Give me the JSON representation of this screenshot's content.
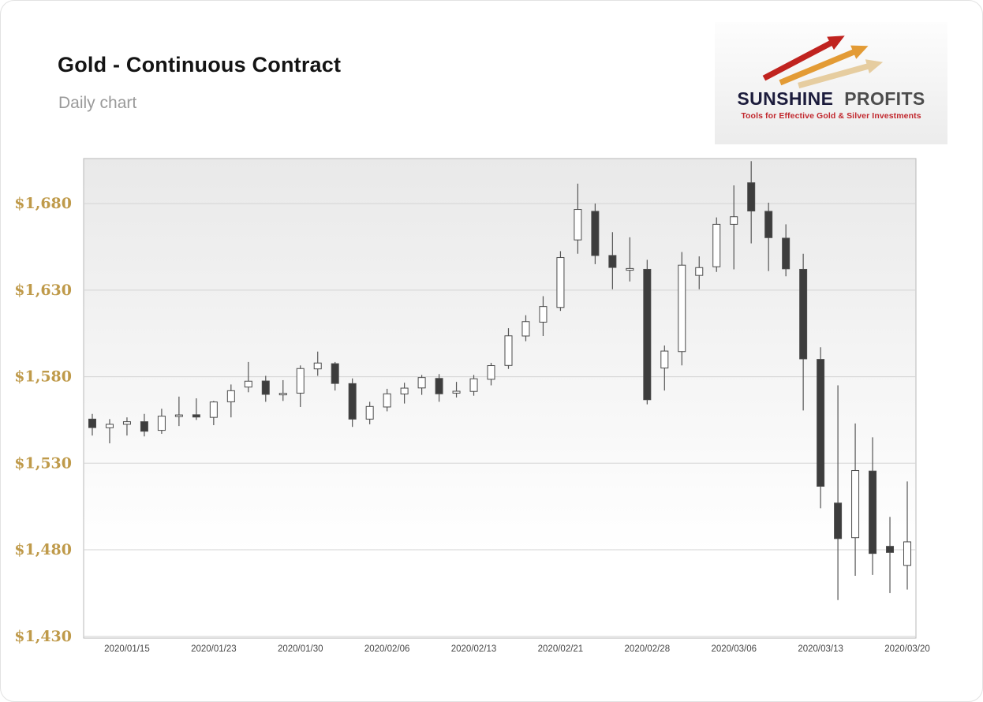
{
  "header": {
    "title": "Gold - Continuous Contract",
    "subtitle": "Daily chart"
  },
  "logo": {
    "brand_primary": "SUNSHINE",
    "brand_secondary": "PROFITS",
    "tagline": "Tools for Effective Gold & Silver Investments",
    "arrow_colors": [
      "#c0231f",
      "#e39b35",
      "#e6cda0"
    ],
    "colors": {
      "primary": "#1c1c3c",
      "secondary": "#4d4d4d",
      "tagline": "#c1272d"
    }
  },
  "chart_data": {
    "type": "candlestick",
    "title": "Gold - Continuous Contract",
    "subtitle": "Daily chart",
    "grid": true,
    "ylim": [
      1429,
      1706
    ],
    "y_ticks": [
      {
        "value": 1680,
        "label": "$1,680"
      },
      {
        "value": 1630,
        "label": "$1,630"
      },
      {
        "value": 1580,
        "label": "$1,580"
      },
      {
        "value": 1530,
        "label": "$1,530"
      },
      {
        "value": 1480,
        "label": "$1,480"
      },
      {
        "value": 1430,
        "label": "$1,430"
      }
    ],
    "x_ticks": [
      {
        "index": 2,
        "label": "2020/01/15"
      },
      {
        "index": 7,
        "label": "2020/01/23"
      },
      {
        "index": 12,
        "label": "2020/01/30"
      },
      {
        "index": 17,
        "label": "2020/02/06"
      },
      {
        "index": 22,
        "label": "2020/02/13"
      },
      {
        "index": 27,
        "label": "2020/02/21"
      },
      {
        "index": 32,
        "label": "2020/02/28"
      },
      {
        "index": 37,
        "label": "2020/03/06"
      },
      {
        "index": 42,
        "label": "2020/03/13"
      },
      {
        "index": 47,
        "label": "2020/03/20"
      }
    ],
    "candles": [
      {
        "date": "2020/01/13",
        "open": 1555.5,
        "high": 1558.5,
        "low": 1546.0,
        "close": 1550.6
      },
      {
        "date": "2020/01/14",
        "open": 1550.5,
        "high": 1555.5,
        "low": 1541.5,
        "close": 1552.5
      },
      {
        "date": "2020/01/15",
        "open": 1552.5,
        "high": 1556.5,
        "low": 1546.0,
        "close": 1554.0
      },
      {
        "date": "2020/01/16",
        "open": 1554.0,
        "high": 1558.5,
        "low": 1545.5,
        "close": 1548.5
      },
      {
        "date": "2020/01/17",
        "open": 1549.0,
        "high": 1561.5,
        "low": 1547.0,
        "close": 1557.2
      },
      {
        "date": "2020/01/21",
        "open": 1557.0,
        "high": 1568.5,
        "low": 1551.5,
        "close": 1557.9
      },
      {
        "date": "2020/01/22",
        "open": 1558.0,
        "high": 1567.5,
        "low": 1555.0,
        "close": 1556.7
      },
      {
        "date": "2020/01/23",
        "open": 1556.5,
        "high": 1566.0,
        "low": 1552.0,
        "close": 1565.4
      },
      {
        "date": "2020/01/24",
        "open": 1565.5,
        "high": 1575.5,
        "low": 1556.5,
        "close": 1571.9
      },
      {
        "date": "2020/01/27",
        "open": 1574.0,
        "high": 1588.5,
        "low": 1571.0,
        "close": 1577.4
      },
      {
        "date": "2020/01/28",
        "open": 1577.5,
        "high": 1580.5,
        "low": 1565.5,
        "close": 1569.8
      },
      {
        "date": "2020/01/29",
        "open": 1569.5,
        "high": 1578.0,
        "low": 1566.0,
        "close": 1570.4
      },
      {
        "date": "2020/01/30",
        "open": 1570.5,
        "high": 1586.5,
        "low": 1562.5,
        "close": 1584.7
      },
      {
        "date": "2020/01/31",
        "open": 1584.5,
        "high": 1594.5,
        "low": 1580.5,
        "close": 1587.9
      },
      {
        "date": "2020/02/03",
        "open": 1587.5,
        "high": 1588.5,
        "low": 1572.0,
        "close": 1576.1
      },
      {
        "date": "2020/02/04",
        "open": 1576.0,
        "high": 1579.0,
        "low": 1551.0,
        "close": 1555.5
      },
      {
        "date": "2020/02/05",
        "open": 1555.5,
        "high": 1565.5,
        "low": 1552.5,
        "close": 1562.8
      },
      {
        "date": "2020/02/06",
        "open": 1562.5,
        "high": 1573.0,
        "low": 1560.0,
        "close": 1570.1
      },
      {
        "date": "2020/02/07",
        "open": 1570.0,
        "high": 1576.5,
        "low": 1564.5,
        "close": 1573.4
      },
      {
        "date": "2020/02/10",
        "open": 1573.5,
        "high": 1581.0,
        "low": 1569.5,
        "close": 1579.5
      },
      {
        "date": "2020/02/11",
        "open": 1579.0,
        "high": 1581.5,
        "low": 1565.5,
        "close": 1570.1
      },
      {
        "date": "2020/02/12",
        "open": 1570.5,
        "high": 1577.0,
        "low": 1568.0,
        "close": 1571.6
      },
      {
        "date": "2020/02/13",
        "open": 1571.5,
        "high": 1581.0,
        "low": 1569.0,
        "close": 1578.8
      },
      {
        "date": "2020/02/14",
        "open": 1578.5,
        "high": 1588.0,
        "low": 1575.0,
        "close": 1586.4
      },
      {
        "date": "2020/02/18",
        "open": 1586.5,
        "high": 1608.0,
        "low": 1584.5,
        "close": 1603.6
      },
      {
        "date": "2020/02/19",
        "open": 1603.5,
        "high": 1615.5,
        "low": 1600.5,
        "close": 1611.8
      },
      {
        "date": "2020/02/20",
        "open": 1611.5,
        "high": 1626.5,
        "low": 1603.5,
        "close": 1620.5
      },
      {
        "date": "2020/02/21",
        "open": 1620.0,
        "high": 1652.5,
        "low": 1618.0,
        "close": 1648.8
      },
      {
        "date": "2020/02/24",
        "open": 1659.0,
        "high": 1691.5,
        "low": 1651.0,
        "close": 1676.6
      },
      {
        "date": "2020/02/25",
        "open": 1675.5,
        "high": 1680.0,
        "low": 1645.0,
        "close": 1650.0
      },
      {
        "date": "2020/02/26",
        "open": 1650.0,
        "high": 1663.5,
        "low": 1630.5,
        "close": 1643.1
      },
      {
        "date": "2020/02/27",
        "open": 1641.5,
        "high": 1660.5,
        "low": 1635.0,
        "close": 1642.5
      },
      {
        "date": "2020/02/28",
        "open": 1642.0,
        "high": 1647.5,
        "low": 1564.0,
        "close": 1566.7
      },
      {
        "date": "2020/03/02",
        "open": 1585.0,
        "high": 1598.0,
        "low": 1572.0,
        "close": 1594.8
      },
      {
        "date": "2020/03/03",
        "open": 1594.5,
        "high": 1652.0,
        "low": 1586.5,
        "close": 1644.4
      },
      {
        "date": "2020/03/04",
        "open": 1638.5,
        "high": 1649.5,
        "low": 1630.5,
        "close": 1643.0
      },
      {
        "date": "2020/03/05",
        "open": 1643.5,
        "high": 1672.0,
        "low": 1640.5,
        "close": 1668.0
      },
      {
        "date": "2020/03/06",
        "open": 1668.0,
        "high": 1690.5,
        "low": 1642.0,
        "close": 1672.4
      },
      {
        "date": "2020/03/09",
        "open": 1692.0,
        "high": 1704.5,
        "low": 1657.0,
        "close": 1675.7
      },
      {
        "date": "2020/03/10",
        "open": 1675.5,
        "high": 1680.5,
        "low": 1641.0,
        "close": 1660.3
      },
      {
        "date": "2020/03/11",
        "open": 1660.0,
        "high": 1668.0,
        "low": 1638.0,
        "close": 1642.3
      },
      {
        "date": "2020/03/12",
        "open": 1642.0,
        "high": 1651.0,
        "low": 1560.5,
        "close": 1590.3
      },
      {
        "date": "2020/03/13",
        "open": 1590.0,
        "high": 1597.0,
        "low": 1504.0,
        "close": 1516.7
      },
      {
        "date": "2020/03/16",
        "open": 1507.0,
        "high": 1575.0,
        "low": 1451.0,
        "close": 1486.5
      },
      {
        "date": "2020/03/17",
        "open": 1487.0,
        "high": 1553.0,
        "low": 1465.0,
        "close": 1525.8
      },
      {
        "date": "2020/03/18",
        "open": 1525.5,
        "high": 1545.0,
        "low": 1465.5,
        "close": 1477.9
      },
      {
        "date": "2020/03/19",
        "open": 1482.0,
        "high": 1499.0,
        "low": 1455.0,
        "close": 1478.5
      },
      {
        "date": "2020/03/20",
        "open": 1471.0,
        "high": 1519.5,
        "low": 1457.0,
        "close": 1484.6
      }
    ],
    "colors": {
      "up_fill": "#ffffff",
      "down_fill": "#3d3d3d",
      "body_stroke": "#4b4b4b",
      "wick": "#555555",
      "grid": "#d4d4d4",
      "frame": "#b8b8b8",
      "bg_top": "#e9e9e9",
      "bg_bottom": "#ffffff",
      "axis_label": "#bf9a4a",
      "x_label": "#444444"
    }
  }
}
